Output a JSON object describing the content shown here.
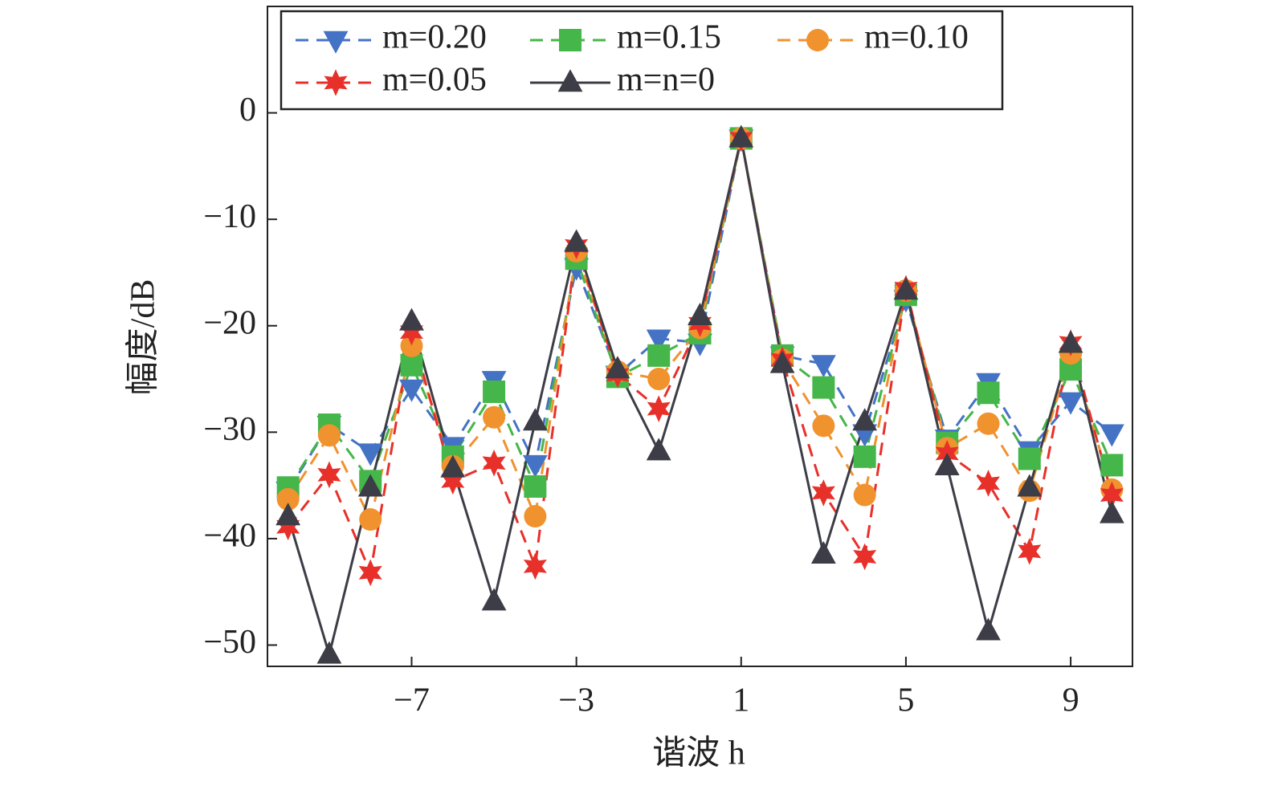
{
  "chart_data": {
    "type": "line",
    "xlabel": "谐波 h",
    "ylabel": "幅度/dB",
    "x": [
      -10,
      -9,
      -8,
      -7,
      -6,
      -5,
      -4,
      -3,
      -2,
      -1,
      0,
      1,
      2,
      3,
      4,
      5,
      6,
      7,
      8,
      9,
      10
    ],
    "xlim": [
      -10.5,
      10.5
    ],
    "xticks": [
      {
        "value": -7,
        "label": "−7"
      },
      {
        "value": -3,
        "label": "−3"
      },
      1,
      5,
      9
    ],
    "ylim": [
      -52,
      10
    ],
    "yticks": [
      0,
      {
        "value": -10,
        "label": "−10"
      },
      {
        "value": -20,
        "label": "−20"
      },
      {
        "value": -30,
        "label": "−30"
      },
      {
        "value": -40,
        "label": "−40"
      },
      {
        "value": -50,
        "label": "−50"
      }
    ],
    "legend": "upper left",
    "series": [
      {
        "name": "m=0.20",
        "color": "#4472c4",
        "marker": "triangle-down",
        "dashed": true,
        "values": [
          -35.5,
          -29.3,
          -31.9,
          -25.9,
          -31.3,
          -25.1,
          -33.0,
          -14.5,
          -24.6,
          -21.2,
          -21.6,
          -2.4,
          -22.8,
          -23.6,
          -30.1,
          -17.5,
          -30.6,
          -25.3,
          -31.7,
          -27.1,
          -30.1
        ]
      },
      {
        "name": "m=0.15",
        "color": "#45b649",
        "marker": "square",
        "dashed": true,
        "values": [
          -35.2,
          -29.3,
          -34.6,
          -23.7,
          -32.3,
          -26.2,
          -35.1,
          -13.7,
          -24.8,
          -22.8,
          -20.7,
          -2.4,
          -22.8,
          -25.8,
          -32.3,
          -17.1,
          -31.0,
          -26.3,
          -32.5,
          -24.1,
          -33.1
        ]
      },
      {
        "name": "m=0.10",
        "color": "#f0922e",
        "marker": "circle",
        "dashed": true,
        "values": [
          -36.3,
          -30.3,
          -38.2,
          -21.9,
          -33.2,
          -28.6,
          -37.9,
          -13.0,
          -24.3,
          -25.0,
          -20.2,
          -2.4,
          -23.2,
          -29.4,
          -35.9,
          -16.7,
          -31.5,
          -29.2,
          -35.5,
          -22.6,
          -35.4
        ]
      },
      {
        "name": "m=0.05",
        "color": "#e8302a",
        "marker": "star",
        "dashed": true,
        "values": [
          -38.9,
          -34.0,
          -43.2,
          -20.6,
          -34.6,
          -32.9,
          -42.6,
          -12.5,
          -24.6,
          -27.8,
          -19.8,
          -2.4,
          -23.2,
          -35.7,
          -41.7,
          -16.5,
          -32.0,
          -34.8,
          -41.2,
          -21.6,
          -35.9
        ]
      },
      {
        "name": "m=n=0",
        "color": "#3c3d46",
        "marker": "triangle-up",
        "dashed": false,
        "values": [
          -37.9,
          -50.9,
          -35.2,
          -19.6,
          -33.4,
          -45.9,
          -29.0,
          -12.2,
          -24.1,
          -31.8,
          -19.1,
          -2.4,
          -23.6,
          -41.5,
          -29.0,
          -16.7,
          -33.2,
          -48.7,
          -35.2,
          -21.7,
          -37.7
        ]
      }
    ]
  }
}
